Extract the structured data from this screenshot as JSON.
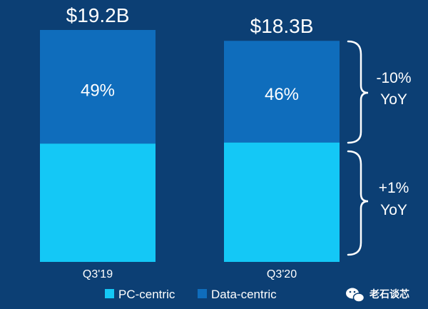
{
  "chart_data": {
    "type": "bar",
    "stacked": true,
    "categories": [
      "Q3'19",
      "Q3'20"
    ],
    "series": [
      {
        "name": "PC-centric",
        "values_pct": [
          51,
          54
        ],
        "color": "#14c8f6"
      },
      {
        "name": "Data-centric",
        "values_pct": [
          49,
          46
        ],
        "color": "#0f6dbc"
      }
    ],
    "segment_labels": [
      "49%",
      "46%"
    ],
    "totals": [
      19.2,
      18.3
    ],
    "total_labels": [
      "$19.2B",
      "$18.3B"
    ],
    "annotations": [
      {
        "lines": [
          "-10%",
          "YoY"
        ],
        "series": "Data-centric"
      },
      {
        "lines": [
          "+1%",
          "YoY"
        ],
        "series": "PC-centric"
      }
    ],
    "legend": {
      "position": "bottom"
    }
  },
  "watermark": {
    "text": "老石谈芯",
    "icon": "wechat-icon"
  }
}
